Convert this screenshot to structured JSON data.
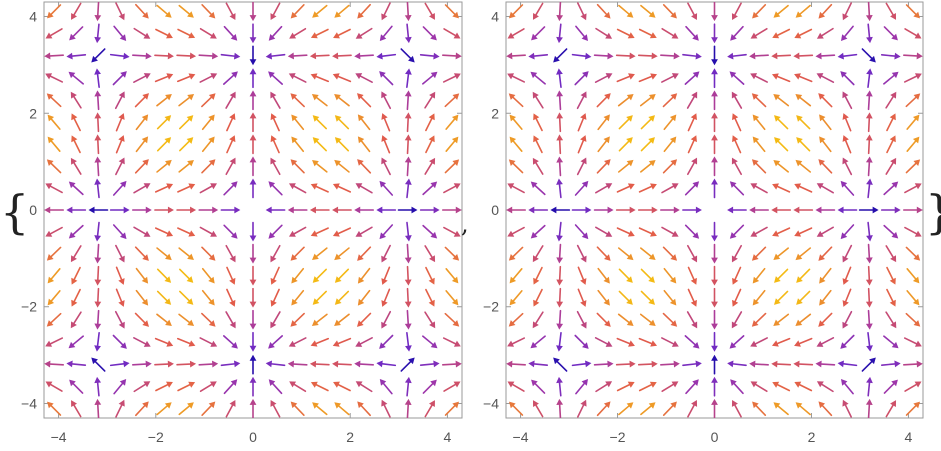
{
  "expression": {
    "open_brace": "{",
    "separator": ",",
    "close_brace": "}"
  },
  "chart_data": [
    {
      "type": "vector-field",
      "title": "",
      "xlabel": "",
      "ylabel": "",
      "xlim": [
        -4.3,
        4.3
      ],
      "ylim": [
        -4.3,
        4.3
      ],
      "xticks": [
        -4,
        -2,
        0,
        2,
        4
      ],
      "yticks": [
        -4,
        -2,
        0,
        2,
        4
      ],
      "xtick_labels": [
        "−4",
        "−2",
        "0",
        "2",
        "4"
      ],
      "ytick_labels": [
        "−4",
        "−2",
        "0",
        "2",
        "4"
      ],
      "grid": false,
      "field": {
        "u": "-sin(x)",
        "v": "sin(y)"
      },
      "samples": {
        "x_min": -4.1,
        "x_max": 4.1,
        "y_min": -4.1,
        "y_max": 4.1,
        "n": 19
      },
      "colormap": [
        "#1b0aa8",
        "#6a29c6",
        "#a237a8",
        "#e25b4b",
        "#f6c40f"
      ],
      "color_range": [
        0,
        1
      ]
    },
    {
      "type": "vector-field",
      "title": "",
      "xlabel": "",
      "ylabel": "",
      "xlim": [
        -4.3,
        4.3
      ],
      "ylim": [
        -4.3,
        4.3
      ],
      "xticks": [
        -4,
        -2,
        0,
        2,
        4
      ],
      "yticks": [
        -4,
        -2,
        0,
        2,
        4
      ],
      "xtick_labels": [
        "−4",
        "−2",
        "0",
        "2",
        "4"
      ],
      "ytick_labels": [
        "−4",
        "−2",
        "0",
        "2",
        "4"
      ],
      "grid": false,
      "field": {
        "u": "-sin(x)",
        "v": "sin(y)"
      },
      "samples": {
        "x_min": -4.1,
        "x_max": 4.1,
        "y_min": -4.1,
        "y_max": 4.1,
        "n": 19
      },
      "colormap": [
        "#1b0aa8",
        "#6a29c6",
        "#a237a8",
        "#e25b4b",
        "#f6c40f"
      ],
      "color_range": [
        0,
        1
      ]
    }
  ]
}
